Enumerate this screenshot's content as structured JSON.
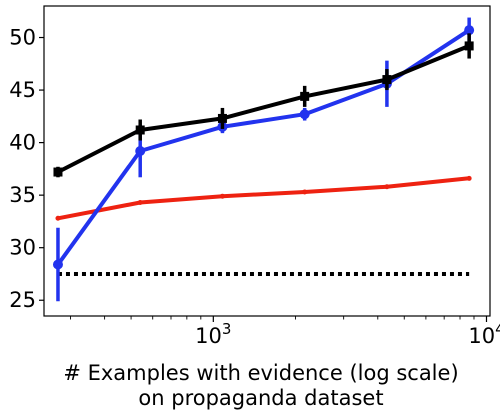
{
  "chart_data": {
    "type": "line",
    "title": "",
    "xlabel": "# Examples with evidence (log scale)",
    "xlabel_line2": "on propaganda dataset",
    "ylabel": "",
    "xscale": "log",
    "xlim": [
      240,
      10300
    ],
    "ylim": [
      23.5,
      53
    ],
    "x_ticks": [
      {
        "value": 1000,
        "base": "10",
        "exp": "3"
      },
      {
        "value": 10000,
        "base": "10",
        "exp": "4"
      }
    ],
    "y_ticks": [
      25,
      30,
      35,
      40,
      45,
      50
    ],
    "grid": false,
    "legend": "none",
    "series": [
      {
        "color": "#000000",
        "marker": "square",
        "x": [
          270,
          540,
          1080,
          2160,
          4320,
          8640
        ],
        "y": [
          37.2,
          41.2,
          42.3,
          44.4,
          46.0,
          49.2
        ],
        "err": [
          0.5,
          1.0,
          1.0,
          1.0,
          1.0,
          1.2
        ]
      },
      {
        "color": "#2233ee",
        "marker": "circle",
        "x": [
          270,
          540,
          1080,
          2160,
          4320,
          8640
        ],
        "y": [
          28.4,
          39.2,
          41.5,
          42.7,
          45.6,
          50.7
        ],
        "err": [
          3.5,
          2.5,
          0.6,
          0.6,
          2.2,
          1.2
        ]
      },
      {
        "color": "#ee2211",
        "marker": "dot",
        "x": [
          270,
          540,
          1080,
          2160,
          4320,
          8640
        ],
        "y": [
          32.8,
          34.3,
          34.9,
          35.3,
          35.8,
          36.6
        ],
        "err": [
          0,
          0,
          0,
          0,
          0,
          0
        ]
      }
    ],
    "baseline": {
      "y": 27.5,
      "x_start": 270,
      "x_end": 8640,
      "color": "#000000",
      "style": "dotted"
    }
  }
}
